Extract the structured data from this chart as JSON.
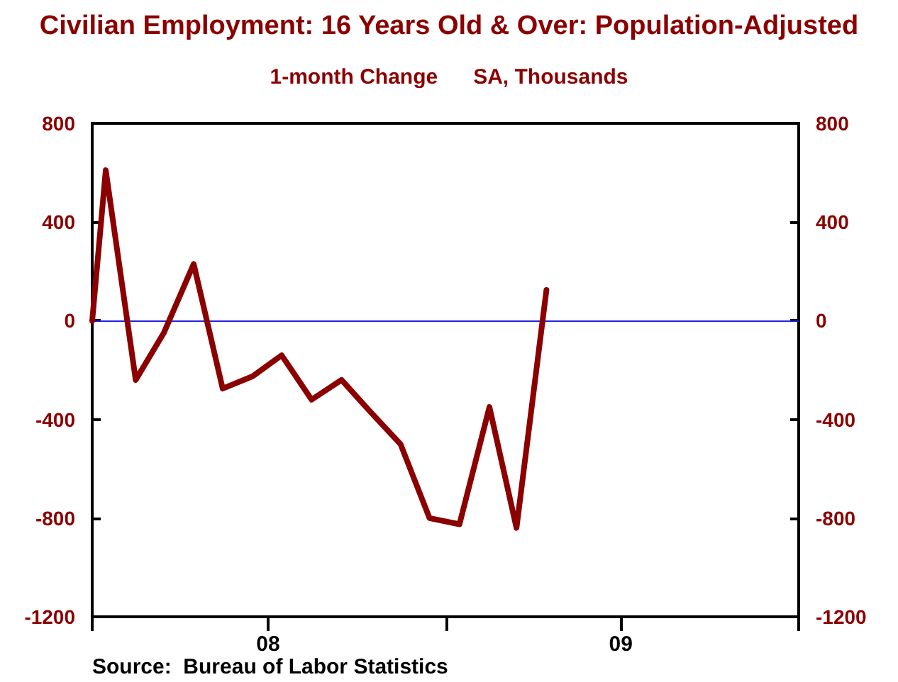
{
  "chart_data": {
    "type": "line",
    "title": "Civilian Employment: 16 Years Old & Over: Population-Adjusted",
    "subtitle": "1-month Change      SA, Thousands",
    "x": [
      "2008-01-01",
      "2008-01-15",
      "2008-02-15",
      "2008-03-15",
      "2008-04-15",
      "2008-05-15",
      "2008-06-15",
      "2008-07-15",
      "2008-08-15",
      "2008-09-15",
      "2008-10-15",
      "2008-11-15",
      "2008-12-15",
      "2009-01-15",
      "2009-02-15",
      "2009-03-15",
      "2009-04-15"
    ],
    "series": [
      {
        "color": "#8b0000",
        "values": [
          0,
          610,
          -240,
          -50,
          230,
          -275,
          -225,
          -140,
          -320,
          -240,
          -370,
          -500,
          -800,
          -825,
          -350,
          -840,
          125
        ]
      }
    ],
    "xlim": [
      "2008-01-01",
      "2010-01-01"
    ],
    "xticks": [
      {
        "value": "2008-01-01",
        "label": null
      },
      {
        "value": "2008-07-01",
        "label": "08"
      },
      {
        "value": "2009-01-01",
        "label": null
      },
      {
        "value": "2009-07-01",
        "label": "09"
      },
      {
        "value": "2010-01-01",
        "label": null
      }
    ],
    "ylim": [
      -1200,
      800
    ],
    "yticks": [
      -1200,
      -800,
      -400,
      0,
      400,
      800
    ],
    "y2lim": [
      -1200,
      800
    ],
    "y2ticks": [
      -1200,
      -800,
      -400,
      0,
      400,
      800
    ],
    "ref_lines": [
      {
        "axis": "y",
        "value": 0,
        "color": "#2222dd"
      }
    ],
    "annotations": [
      "Source:  Bureau of Labor Statistics"
    ],
    "grid": false,
    "marker": "none",
    "line_style": "solid"
  }
}
